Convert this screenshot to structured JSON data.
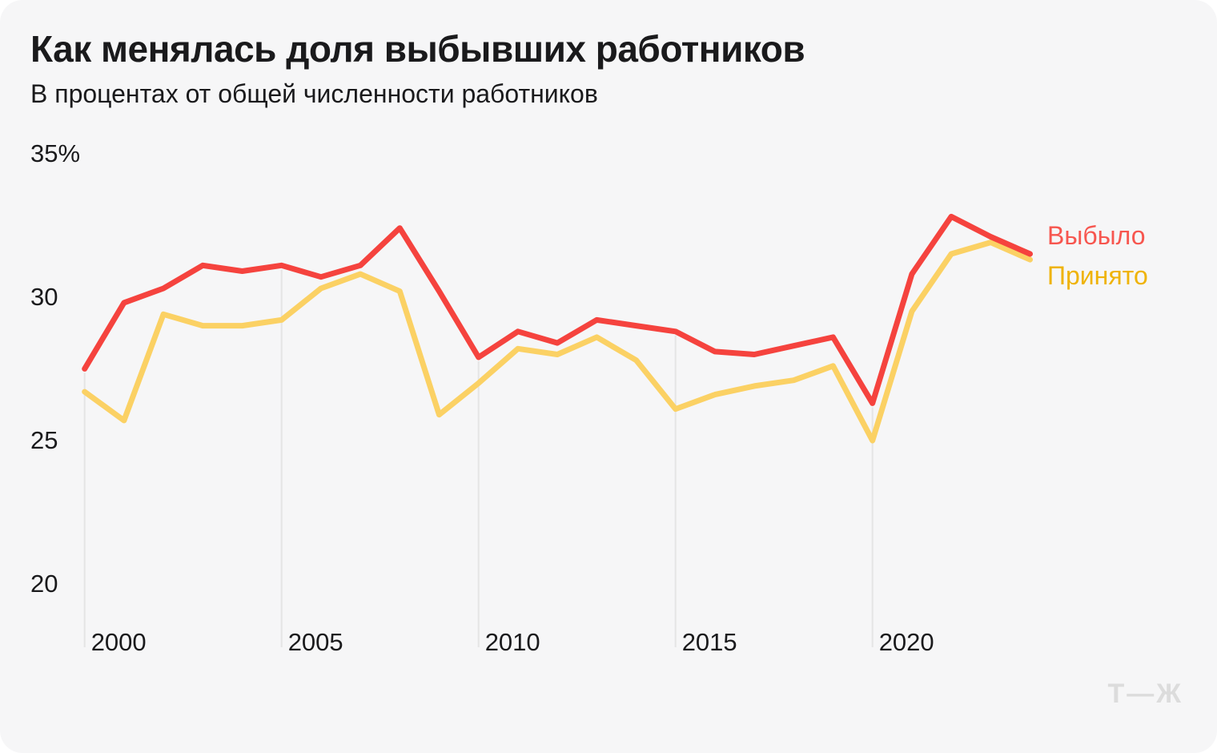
{
  "header": {
    "title": "Как менялась доля выбывших работников",
    "subtitle": "В процентах от общей численности работников"
  },
  "footer": {
    "logo_text": "Т—Ж"
  },
  "colors": {
    "page_background": "#FFFFFF",
    "card_background": "#F6F6F7",
    "text": "#1A1A1C",
    "grid": "#E5E5E5",
    "departed_line": "#F5433E",
    "hired_line": "#FBD164",
    "departed_label": "#F7564F",
    "hired_label": "#EFB306",
    "logo": "#DCDCDC"
  },
  "chart_data": {
    "type": "line",
    "title": "Как менялась доля выбывших работников",
    "subtitle": "В процентах от общей численности работников",
    "xlabel": "",
    "ylabel": "",
    "x": [
      2000,
      2001,
      2002,
      2003,
      2004,
      2005,
      2006,
      2007,
      2008,
      2009,
      2010,
      2011,
      2012,
      2013,
      2014,
      2015,
      2016,
      2017,
      2018,
      2019,
      2020,
      2021,
      2022,
      2023,
      2024
    ],
    "series": [
      {
        "name": "Выбыло",
        "color": "#F5433E",
        "label_color": "#F7564F",
        "values": [
          27.5,
          29.8,
          30.3,
          31.1,
          30.9,
          31.1,
          30.7,
          31.1,
          32.4,
          30.2,
          27.9,
          28.8,
          28.4,
          29.2,
          29.0,
          28.8,
          28.1,
          28.0,
          28.3,
          28.6,
          26.3,
          30.8,
          32.8,
          32.1,
          31.5
        ]
      },
      {
        "name": "Принято",
        "color": "#FBD164",
        "label_color": "#EFB306",
        "values": [
          26.7,
          25.7,
          29.4,
          29.0,
          29.0,
          29.2,
          30.3,
          30.8,
          30.2,
          25.9,
          27.0,
          28.2,
          28.0,
          28.6,
          27.8,
          26.1,
          26.6,
          26.9,
          27.1,
          27.6,
          25.0,
          29.5,
          31.5,
          31.9,
          31.3
        ]
      }
    ],
    "yticks": [
      {
        "value": 35,
        "label": "35%"
      },
      {
        "value": 30,
        "label": "30"
      },
      {
        "value": 25,
        "label": "25"
      },
      {
        "value": 20,
        "label": "20"
      }
    ],
    "xticks": [
      {
        "value": 2000,
        "label": "2000"
      },
      {
        "value": 2005,
        "label": "2005"
      },
      {
        "value": 2010,
        "label": "2010"
      },
      {
        "value": 2015,
        "label": "2015"
      },
      {
        "value": 2020,
        "label": "2020"
      }
    ],
    "ylim": [
      18.5,
      35.5
    ],
    "xlim": [
      2000,
      2024
    ],
    "grid": "vertical-only",
    "legend_position": "right-of-line-end",
    "legend": [
      "Выбыло",
      "Принято"
    ]
  }
}
